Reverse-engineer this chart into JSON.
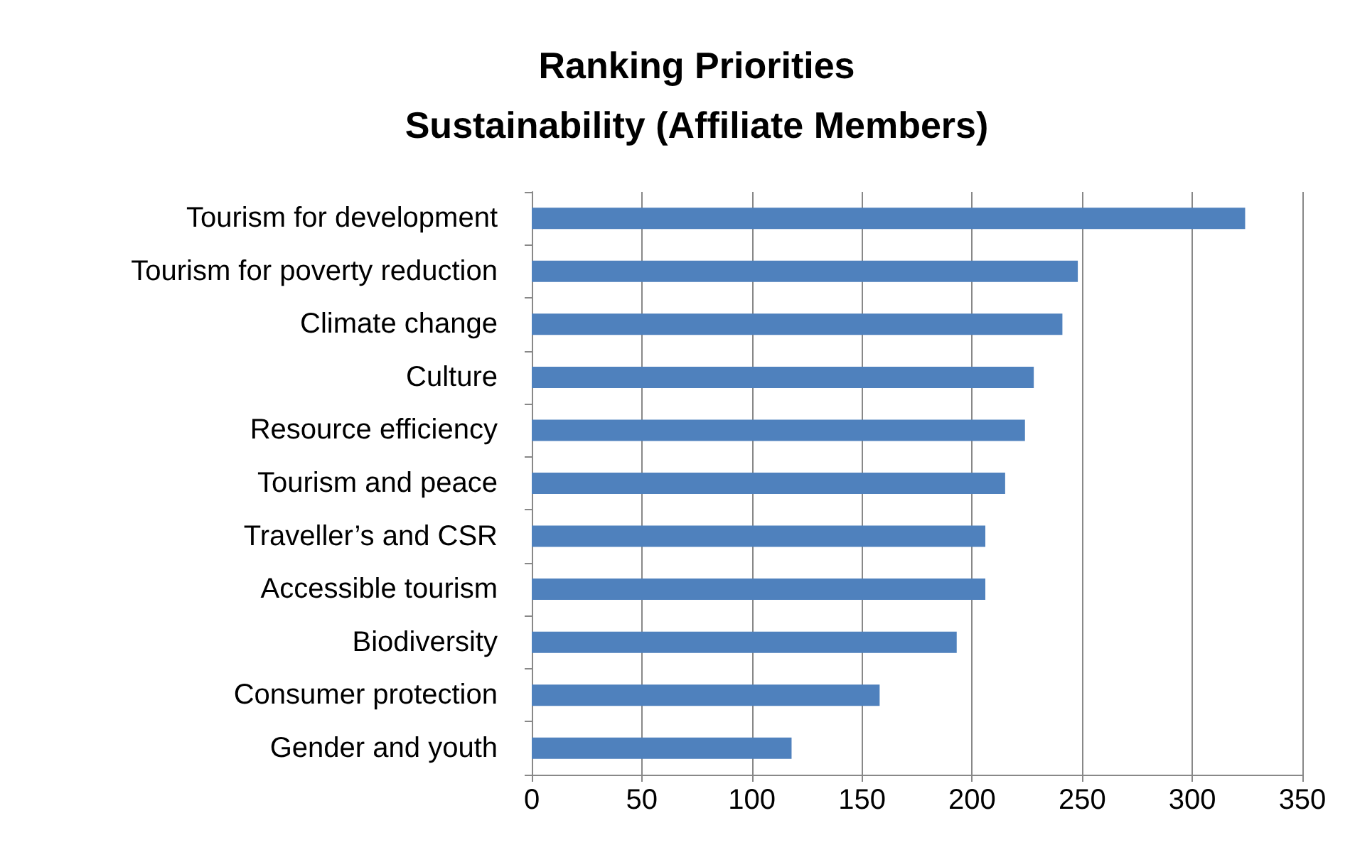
{
  "chart_data": {
    "type": "bar",
    "orientation": "horizontal",
    "title": "Ranking Priorities",
    "subtitle": "Sustainability (Affiliate Members)",
    "categories": [
      "Tourism for development",
      "Tourism for poverty reduction",
      "Climate change",
      "Culture",
      "Resource efficiency",
      "Tourism and peace",
      "Traveller’s and CSR",
      "Accessible tourism",
      "Biodiversity",
      "Consumer protection",
      "Gender and youth"
    ],
    "values": [
      324,
      248,
      241,
      228,
      224,
      215,
      206,
      206,
      193,
      158,
      118
    ],
    "color": "#4f81bd",
    "xlim": [
      0,
      350
    ],
    "xticks": [
      0,
      50,
      100,
      150,
      200,
      250,
      300,
      350
    ],
    "grid": "x"
  }
}
